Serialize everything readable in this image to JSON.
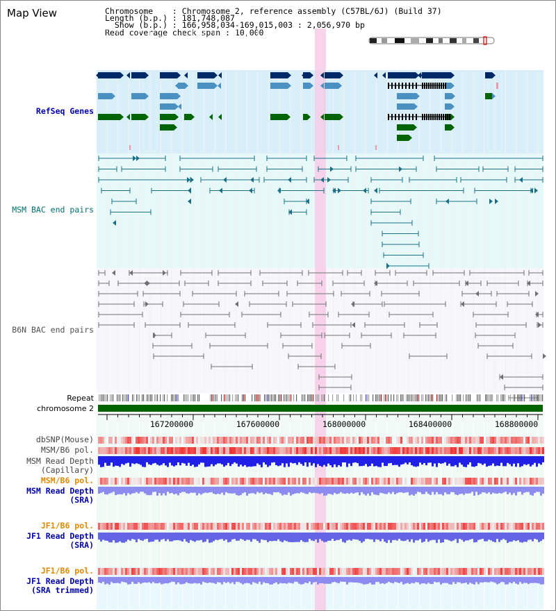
{
  "title": "Map View",
  "info": {
    "chromosome_line": "Chromosome    : Chromosome 2, reference assembly (C57BL/6J) (Build 37)",
    "length_line": "Length (b.p.) : 181,748,087",
    "show_line": "  Show (b.p.) : 166,958,034-169,015,003 : 2,056,970 bp",
    "coverage_line": "Read coverage check span : 10,000"
  },
  "tracks": {
    "refseq": "RefSeq Genes",
    "msm_bac": "MSM BAC end pairs",
    "b6n_bac": "B6N BAC end pairs",
    "repeat": "Repeat",
    "chromosome": "chromosome 2",
    "dbsnp": "dbSNP(Mouse)",
    "msm_b6_pol_1": "MSM/B6 pol.",
    "msm_depth_cap_1": "MSM Read Depth",
    "msm_depth_cap_2": "(Capillary)",
    "msm_b6_pol_2": "MSM/B6 pol.",
    "msm_depth_sra_1": "MSM Read Depth",
    "msm_depth_sra_2": "(SRA)",
    "jf1_b6_pol_1": "JF1/B6 pol.",
    "jf1_depth_sra_1": "JF1 Read Depth",
    "jf1_depth_sra_2": "(SRA)",
    "jf1_b6_pol_2": "JF1/B6 pol.",
    "jf1_depth_trim_1": "JF1 Read Depth",
    "jf1_depth_trim_2": "(SRA trimmed)"
  },
  "axis": {
    "ticks": [
      "167200000",
      "167600000",
      "168000000",
      "168400000",
      "168800000"
    ]
  },
  "colors": {
    "refseq_bg": "#d8eef8",
    "msm_bg": "#e6f8f8",
    "b6n_bg": "#f4f4fa",
    "highlight": "#f7cde8",
    "chromosome": "#006400",
    "gene_dark": "#002a66",
    "gene_mid": "#4a90c0",
    "gene_green": "#006400"
  }
}
